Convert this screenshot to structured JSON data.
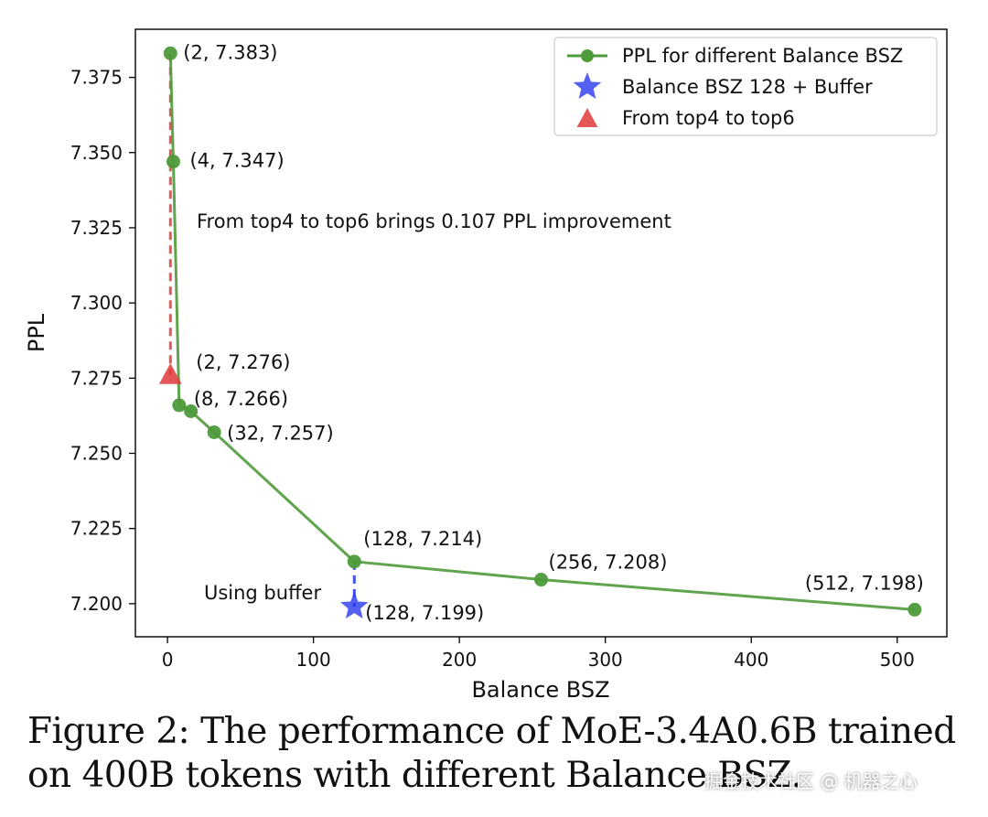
{
  "chart_data": {
    "type": "line",
    "xlabel": "Balance BSZ",
    "ylabel": "PPL",
    "xlim": [
      -22,
      534
    ],
    "ylim": [
      7.189,
      7.391
    ],
    "xticks": [
      0,
      100,
      200,
      300,
      400,
      500
    ],
    "yticks": [
      7.2,
      7.225,
      7.25,
      7.275,
      7.3,
      7.325,
      7.35,
      7.375
    ],
    "ytick_labels": [
      "7.200",
      "7.225",
      "7.250",
      "7.275",
      "7.300",
      "7.325",
      "7.350",
      "7.375"
    ],
    "grid": false,
    "legend_position": "top-right",
    "series": [
      {
        "name": "PPL for different Balance BSZ",
        "color": "#4f9a3a",
        "marker": "circle",
        "x": [
          2,
          4,
          8,
          16,
          32,
          128,
          256,
          512
        ],
        "y": [
          7.383,
          7.347,
          7.266,
          7.264,
          7.257,
          7.214,
          7.208,
          7.198
        ]
      },
      {
        "name": "Balance BSZ 128 + Buffer",
        "color": "#2233ee",
        "marker": "star",
        "x": [
          128
        ],
        "y": [
          7.199
        ]
      },
      {
        "name": "From top4 to top6",
        "color": "#e03a3a",
        "marker": "triangle",
        "x": [
          2
        ],
        "y": [
          7.276
        ]
      }
    ],
    "point_labels": [
      {
        "x": 2,
        "y": 7.383,
        "text": "(2, 7.383)",
        "dx": 14,
        "dy": 6
      },
      {
        "x": 4,
        "y": 7.347,
        "text": "(4, 7.347)",
        "dx": 18,
        "dy": 6
      },
      {
        "x": 2,
        "y": 7.276,
        "text": "(2, 7.276)",
        "dx": 28,
        "dy": -7
      },
      {
        "x": 8,
        "y": 7.266,
        "text": "(8, 7.266)",
        "dx": 16,
        "dy": 0
      },
      {
        "x": 32,
        "y": 7.257,
        "text": "(32, 7.257)",
        "dx": 14,
        "dy": 8
      },
      {
        "x": 128,
        "y": 7.214,
        "text": "(128, 7.214)",
        "dx": 10,
        "dy": -18
      },
      {
        "x": 256,
        "y": 7.208,
        "text": "(256, 7.208)",
        "dx": 8,
        "dy": -12
      },
      {
        "x": 512,
        "y": 7.198,
        "text": "(512, 7.198)",
        "dx": -120,
        "dy": -22
      },
      {
        "x": 128,
        "y": 7.199,
        "text": "(128, 7.199)",
        "dx": 12,
        "dy": 14
      }
    ],
    "annotations": [
      {
        "text": "From top4 to top6 brings 0.107 PPL improvement",
        "x": 20,
        "y": 7.325
      },
      {
        "text": "Using buffer",
        "x": 25,
        "y": 7.2015
      }
    ],
    "connectors": [
      {
        "name": "top4-top6-connector",
        "color": "#e03a3a",
        "x1": 2,
        "y1": 7.383,
        "x2": 2,
        "y2": 7.276
      },
      {
        "name": "buffer-connector",
        "color": "#2233ee",
        "x1": 128,
        "y1": 7.214,
        "x2": 128,
        "y2": 7.199
      }
    ]
  },
  "caption": {
    "line1": "Figure 2: The performance of MoE-3.4A0.6B trained",
    "line2": "on 400B tokens with different Balance BSZ."
  },
  "watermark": "掘金技术社区 @ 机器之心"
}
